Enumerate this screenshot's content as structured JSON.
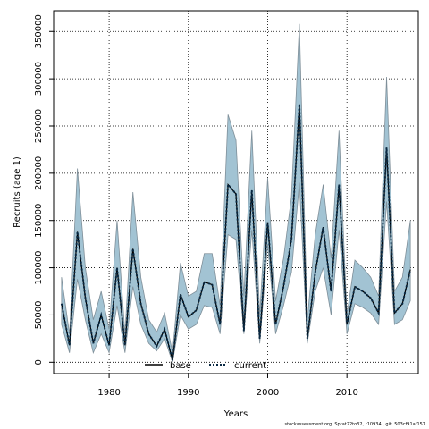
{
  "chart_data": {
    "type": "line",
    "xlabel": "Years",
    "ylabel": "Recruits (age 1)",
    "xlim": [
      1973,
      2019
    ],
    "ylim": [
      -12000,
      372000
    ],
    "x_ticks": [
      1980,
      1990,
      2000,
      2010
    ],
    "y_ticks": [
      0,
      50000,
      100000,
      150000,
      200000,
      250000,
      300000,
      350000
    ],
    "grid": true,
    "legend_position": "bottom",
    "x": [
      1974,
      1975,
      1976,
      1977,
      1978,
      1979,
      1980,
      1981,
      1982,
      1983,
      1984,
      1985,
      1986,
      1987,
      1988,
      1989,
      1990,
      1991,
      1992,
      1993,
      1994,
      1995,
      1996,
      1997,
      1998,
      1999,
      2000,
      2001,
      2002,
      2003,
      2004,
      2005,
      2006,
      2007,
      2008,
      2009,
      2010,
      2011,
      2012,
      2013,
      2014,
      2015,
      2016,
      2017,
      2018
    ],
    "band": {
      "lower": [
        40000,
        10000,
        88000,
        45000,
        10000,
        30000,
        10000,
        60000,
        10000,
        80000,
        40000,
        20000,
        12000,
        25000,
        0,
        50000,
        35000,
        40000,
        60000,
        58000,
        30000,
        135000,
        130000,
        30000,
        140000,
        20000,
        125000,
        30000,
        60000,
        95000,
        190000,
        20000,
        75000,
        100000,
        50000,
        140000,
        30000,
        62000,
        58000,
        52000,
        40000,
        170000,
        40000,
        45000,
        65000
      ],
      "upper": [
        90000,
        30000,
        205000,
        100000,
        45000,
        75000,
        35000,
        150000,
        30000,
        180000,
        90000,
        45000,
        32000,
        52000,
        10000,
        105000,
        70000,
        75000,
        115000,
        115000,
        60000,
        262000,
        235000,
        70000,
        245000,
        50000,
        195000,
        65000,
        110000,
        175000,
        358000,
        45000,
        135000,
        188000,
        110000,
        245000,
        50000,
        108000,
        100000,
        90000,
        70000,
        302000,
        75000,
        90000,
        150000
      ]
    },
    "series": [
      {
        "name": "base",
        "values": [
          62000,
          18000,
          138000,
          68000,
          20000,
          50000,
          18000,
          100000,
          18000,
          120000,
          62000,
          30000,
          17000,
          35000,
          2000,
          72000,
          48000,
          55000,
          85000,
          82000,
          40000,
          188000,
          178000,
          33000,
          182000,
          25000,
          148000,
          40000,
          80000,
          130000,
          273000,
          25000,
          95000,
          143000,
          75000,
          188000,
          40000,
          80000,
          75000,
          68000,
          52000,
          227000,
          52000,
          62000,
          98000
        ]
      },
      {
        "name": "current",
        "values": [
          62000,
          18000,
          138000,
          68000,
          20000,
          50000,
          18000,
          100000,
          18000,
          120000,
          62000,
          30000,
          17000,
          35000,
          2000,
          72000,
          48000,
          55000,
          85000,
          82000,
          40000,
          188000,
          178000,
          33000,
          182000,
          25000,
          148000,
          40000,
          80000,
          130000,
          273000,
          25000,
          95000,
          143000,
          75000,
          188000,
          40000,
          80000,
          75000,
          68000,
          52000,
          227000,
          52000,
          62000,
          98000
        ]
      }
    ]
  },
  "style": {
    "band_fill": "#a2c3d3",
    "band_stroke": "#7f8f99",
    "line_color": "#000000",
    "current_color": "#0a2a44"
  },
  "footer": "stockassessment.org, Sprat22to32, r10934 , git: 503cf91af157"
}
